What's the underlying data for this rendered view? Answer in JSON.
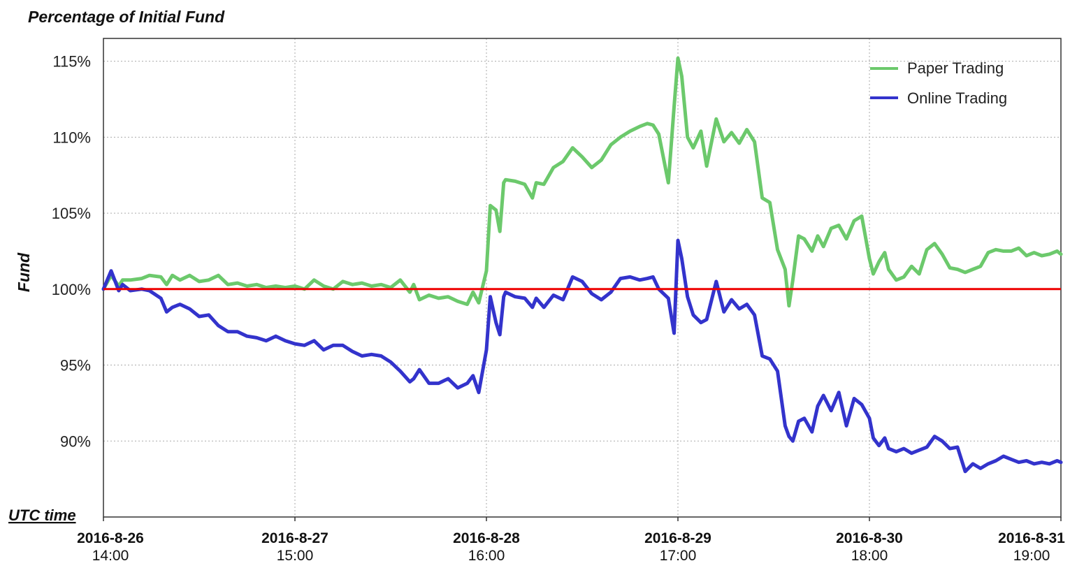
{
  "chart_data": {
    "type": "line",
    "title": "Percentage of Initial Fund",
    "ylabel": "Fund",
    "xlabel": "UTC time",
    "ylim": [
      85,
      116.5
    ],
    "yticks": [
      90,
      95,
      100,
      105,
      110,
      115
    ],
    "ytick_labels": [
      "90%",
      "95%",
      "100%",
      "105%",
      "110%",
      "115%"
    ],
    "xlim": [
      0,
      5
    ],
    "xticks": [
      {
        "value": 0,
        "date": "2016-8-26",
        "time": "14:00"
      },
      {
        "value": 1,
        "date": "2016-8-27",
        "time": "15:00"
      },
      {
        "value": 2,
        "date": "2016-8-28",
        "time": "16:00"
      },
      {
        "value": 3,
        "date": "2016-8-29",
        "time": "17:00"
      },
      {
        "value": 4,
        "date": "2016-8-30",
        "time": "18:00"
      },
      {
        "value": 5,
        "date": "2016-8-31",
        "time": "19:00"
      }
    ],
    "grid": true,
    "legend_position": "top-right",
    "reference_line": {
      "y": 100,
      "color": "#ee0000"
    },
    "series": [
      {
        "name": "Paper Trading",
        "color": "#6cc96c",
        "x": [
          0,
          0.04,
          0.08,
          0.1,
          0.14,
          0.2,
          0.24,
          0.3,
          0.33,
          0.36,
          0.4,
          0.45,
          0.5,
          0.55,
          0.6,
          0.65,
          0.7,
          0.75,
          0.8,
          0.85,
          0.9,
          0.95,
          1.0,
          1.05,
          1.1,
          1.15,
          1.2,
          1.25,
          1.3,
          1.35,
          1.4,
          1.45,
          1.5,
          1.55,
          1.6,
          1.62,
          1.65,
          1.7,
          1.75,
          1.8,
          1.85,
          1.9,
          1.93,
          1.96,
          2.0,
          2.02,
          2.05,
          2.07,
          2.09,
          2.1,
          2.15,
          2.2,
          2.24,
          2.26,
          2.3,
          2.35,
          2.4,
          2.45,
          2.5,
          2.55,
          2.6,
          2.65,
          2.7,
          2.75,
          2.8,
          2.84,
          2.87,
          2.9,
          2.95,
          2.98,
          3.0,
          3.02,
          3.05,
          3.08,
          3.12,
          3.15,
          3.2,
          3.24,
          3.28,
          3.32,
          3.36,
          3.4,
          3.44,
          3.48,
          3.52,
          3.56,
          3.58,
          3.6,
          3.63,
          3.66,
          3.7,
          3.73,
          3.76,
          3.8,
          3.84,
          3.88,
          3.92,
          3.96,
          4.0,
          4.02,
          4.05,
          4.08,
          4.1,
          4.14,
          4.18,
          4.22,
          4.26,
          4.3,
          4.34,
          4.38,
          4.42,
          4.46,
          4.5,
          4.54,
          4.58,
          4.62,
          4.66,
          4.7,
          4.74,
          4.78,
          4.82,
          4.86,
          4.9,
          4.94,
          4.98,
          5.0
        ],
        "values": [
          100.0,
          100.9,
          100.2,
          100.6,
          100.6,
          100.7,
          100.9,
          100.8,
          100.3,
          100.9,
          100.6,
          100.9,
          100.5,
          100.6,
          100.9,
          100.3,
          100.4,
          100.2,
          100.3,
          100.1,
          100.2,
          100.1,
          100.2,
          100.0,
          100.6,
          100.2,
          100.0,
          100.5,
          100.3,
          100.4,
          100.2,
          100.3,
          100.1,
          100.6,
          99.8,
          100.3,
          99.3,
          99.6,
          99.4,
          99.5,
          99.2,
          99.0,
          99.8,
          99.1,
          101.2,
          105.5,
          105.2,
          103.8,
          107.0,
          107.2,
          107.1,
          106.9,
          106.0,
          107.0,
          106.9,
          108.0,
          108.4,
          109.3,
          108.7,
          108.0,
          108.5,
          109.5,
          110.0,
          110.4,
          110.7,
          110.9,
          110.8,
          110.2,
          107.0,
          112.0,
          115.2,
          114.0,
          110.0,
          109.3,
          110.4,
          108.1,
          111.2,
          109.7,
          110.3,
          109.6,
          110.5,
          109.7,
          106.0,
          105.7,
          102.6,
          101.3,
          98.9,
          100.6,
          103.5,
          103.3,
          102.5,
          103.5,
          102.8,
          104.0,
          104.2,
          103.3,
          104.5,
          104.8,
          102.0,
          101.0,
          101.8,
          102.4,
          101.3,
          100.6,
          100.8,
          101.5,
          101.0,
          102.6,
          103.0,
          102.3,
          101.4,
          101.3,
          101.1,
          101.3,
          101.5,
          102.4,
          102.6,
          102.5,
          102.5,
          102.7,
          102.2,
          102.4,
          102.2,
          102.3,
          102.5,
          102.3
        ]
      },
      {
        "name": "Online Trading",
        "color": "#3333cc",
        "x": [
          0,
          0.04,
          0.08,
          0.1,
          0.14,
          0.2,
          0.24,
          0.3,
          0.33,
          0.36,
          0.4,
          0.45,
          0.5,
          0.55,
          0.6,
          0.65,
          0.7,
          0.75,
          0.8,
          0.85,
          0.9,
          0.95,
          1.0,
          1.05,
          1.1,
          1.15,
          1.2,
          1.25,
          1.3,
          1.35,
          1.4,
          1.45,
          1.5,
          1.55,
          1.6,
          1.62,
          1.65,
          1.7,
          1.75,
          1.8,
          1.85,
          1.9,
          1.93,
          1.96,
          2.0,
          2.02,
          2.05,
          2.07,
          2.09,
          2.1,
          2.15,
          2.2,
          2.24,
          2.26,
          2.3,
          2.35,
          2.4,
          2.45,
          2.5,
          2.55,
          2.6,
          2.65,
          2.7,
          2.75,
          2.8,
          2.84,
          2.87,
          2.9,
          2.95,
          2.98,
          3.0,
          3.02,
          3.05,
          3.08,
          3.12,
          3.15,
          3.2,
          3.24,
          3.28,
          3.32,
          3.36,
          3.4,
          3.44,
          3.48,
          3.52,
          3.56,
          3.58,
          3.6,
          3.63,
          3.66,
          3.7,
          3.73,
          3.76,
          3.8,
          3.84,
          3.88,
          3.92,
          3.96,
          4.0,
          4.02,
          4.05,
          4.08,
          4.1,
          4.14,
          4.18,
          4.22,
          4.26,
          4.3,
          4.34,
          4.38,
          4.42,
          4.46,
          4.5,
          4.54,
          4.58,
          4.62,
          4.66,
          4.7,
          4.74,
          4.78,
          4.82,
          4.86,
          4.9,
          4.94,
          4.98,
          5.0
        ],
        "values": [
          100.0,
          101.2,
          99.9,
          100.3,
          99.9,
          100.0,
          99.9,
          99.4,
          98.5,
          98.8,
          99.0,
          98.7,
          98.2,
          98.3,
          97.6,
          97.2,
          97.2,
          96.9,
          96.8,
          96.6,
          96.9,
          96.6,
          96.4,
          96.3,
          96.6,
          96.0,
          96.3,
          96.3,
          95.9,
          95.6,
          95.7,
          95.6,
          95.2,
          94.6,
          93.9,
          94.1,
          94.7,
          93.8,
          93.8,
          94.1,
          93.5,
          93.8,
          94.3,
          93.2,
          96.0,
          99.5,
          97.8,
          97.0,
          99.5,
          99.8,
          99.5,
          99.4,
          98.8,
          99.4,
          98.8,
          99.6,
          99.3,
          100.8,
          100.5,
          99.7,
          99.3,
          99.8,
          100.7,
          100.8,
          100.6,
          100.7,
          100.8,
          100.0,
          99.4,
          97.1,
          103.2,
          102.0,
          99.5,
          98.3,
          97.8,
          98.0,
          100.5,
          98.5,
          99.3,
          98.7,
          99.0,
          98.3,
          95.6,
          95.4,
          94.6,
          91.0,
          90.3,
          90.0,
          91.3,
          91.5,
          90.6,
          92.3,
          93.0,
          92.0,
          93.2,
          91.0,
          92.8,
          92.4,
          91.5,
          90.2,
          89.7,
          90.2,
          89.5,
          89.3,
          89.5,
          89.2,
          89.4,
          89.6,
          90.3,
          90.0,
          89.5,
          89.6,
          88.0,
          88.5,
          88.2,
          88.5,
          88.7,
          89.0,
          88.8,
          88.6,
          88.7,
          88.5,
          88.6,
          88.5,
          88.7,
          88.6
        ]
      }
    ]
  }
}
